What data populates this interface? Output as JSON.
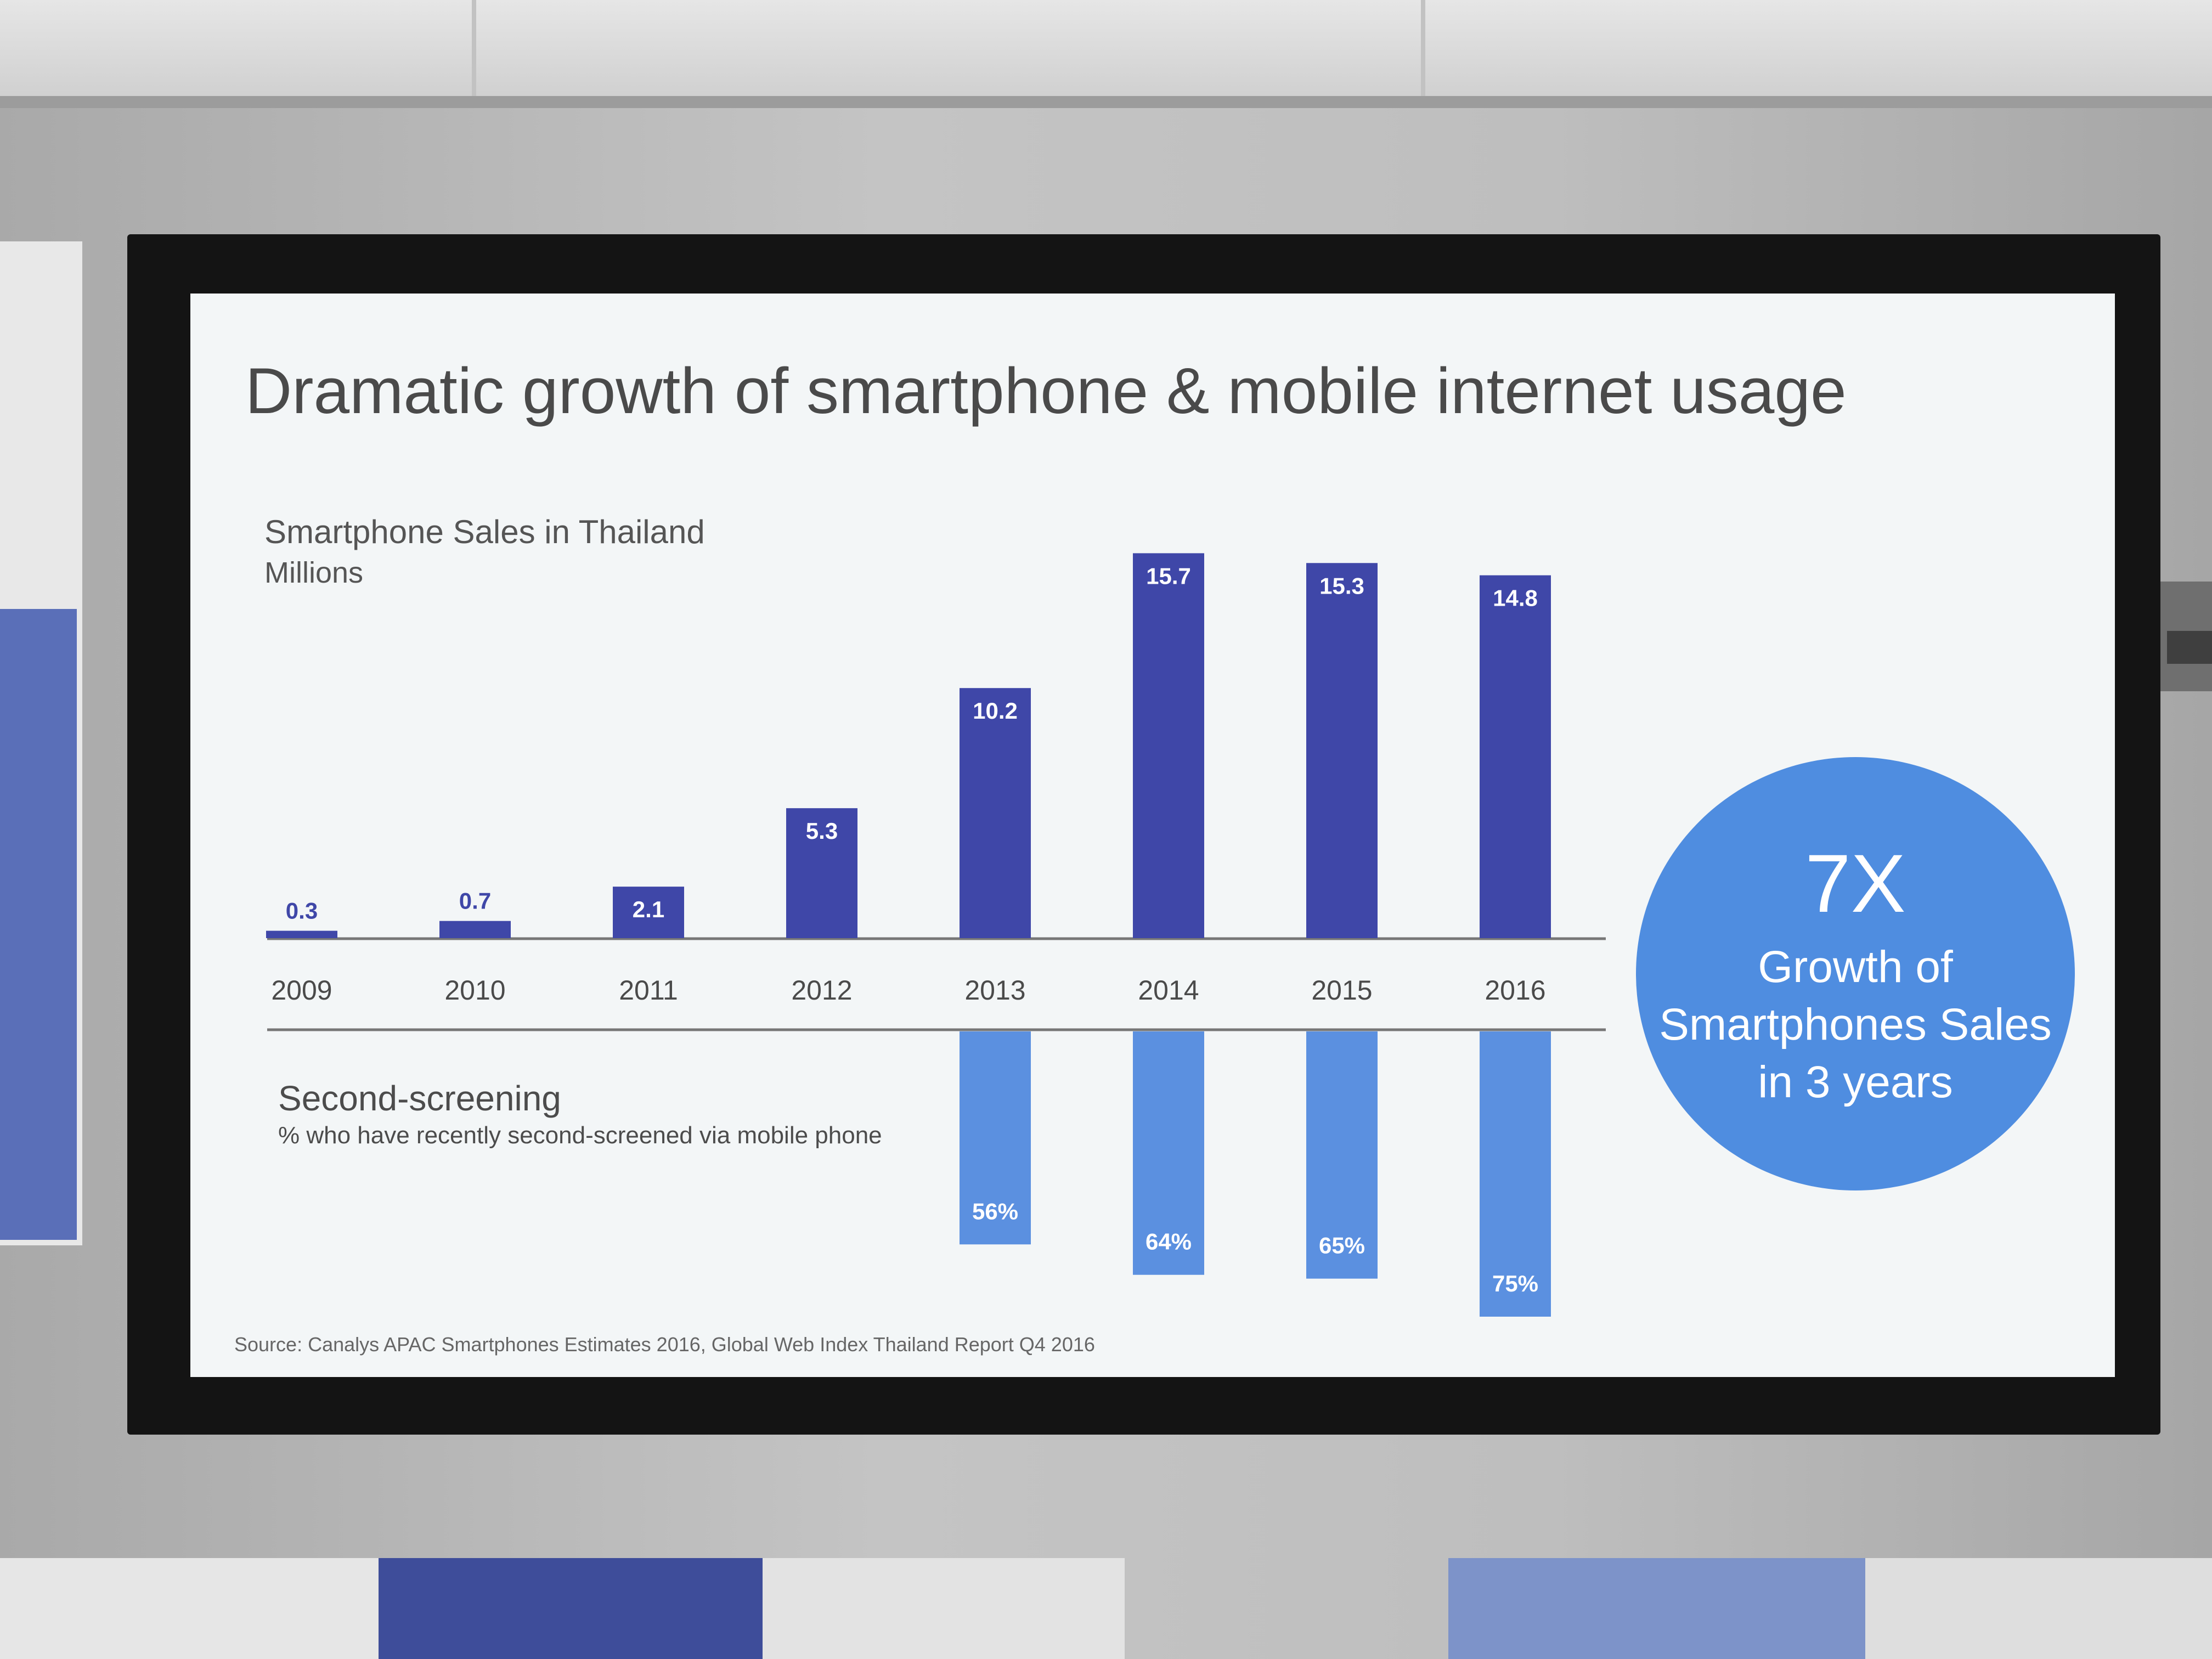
{
  "title": "Dramatic growth of smartphone & mobile internet usage",
  "source": "Source: Canalys APAC Smartphones Estimates 2016, Global Web Index Thailand Report Q4 2016",
  "colors": {
    "sales_bar": "#3f47a8",
    "second_screen_bar": "#5b90e0",
    "circle": "#4f8de0"
  },
  "callout": {
    "big": "7X",
    "text": "Growth of Smartphones Sales in 3 years"
  },
  "chart_data": [
    {
      "type": "bar",
      "title": "Smartphone Sales in Thailand",
      "unit": "Millions",
      "categories": [
        "2009",
        "2010",
        "2011",
        "2012",
        "2013",
        "2014",
        "2015",
        "2016"
      ],
      "values": [
        0.3,
        0.7,
        2.1,
        5.3,
        10.2,
        15.7,
        15.3,
        14.8
      ],
      "value_labels": [
        "0.3",
        "0.7",
        "2.1",
        "5.3",
        "10.2",
        "15.7",
        "15.3",
        "14.8"
      ],
      "ylim": [
        0,
        16
      ],
      "grid": false,
      "color": "#3f47a8"
    },
    {
      "type": "bar",
      "orientation": "downward",
      "title": "Second-screening",
      "subtitle": "% who have recently second-screened via mobile phone",
      "categories": [
        "2013",
        "2014",
        "2015",
        "2016"
      ],
      "values": [
        56,
        64,
        65,
        75
      ],
      "value_labels": [
        "56%",
        "64%",
        "65%",
        "75%"
      ],
      "ylim": [
        0,
        100
      ],
      "grid": false,
      "color": "#5b90e0"
    }
  ]
}
